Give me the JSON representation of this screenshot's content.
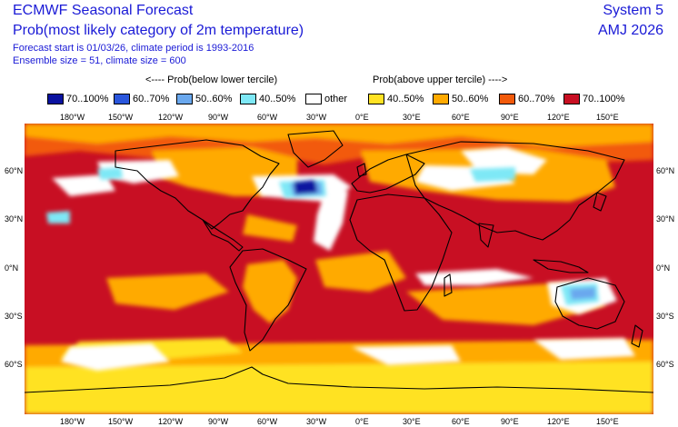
{
  "header": {
    "title": "ECMWF Seasonal Forecast",
    "subtitle": "Prob(most likely category of 2m temperature)",
    "forecast_line": "Forecast start is 01/03/26, climate period is 1993-2016",
    "ensemble_line": "Ensemble size = 51, climate size = 600",
    "system": "System 5",
    "period": "AMJ 2026"
  },
  "legend": {
    "below_label": "<---- Prob(below lower tercile)",
    "above_label": "Prob(above upper tercile) ---->",
    "items": [
      {
        "label": "70..100%",
        "color": "#0a12a0"
      },
      {
        "label": "60..70%",
        "color": "#2a56dc"
      },
      {
        "label": "50..60%",
        "color": "#6aa8ee"
      },
      {
        "label": "40..50%",
        "color": "#7ee8f6"
      },
      {
        "label": "other",
        "color": "#ffffff"
      },
      {
        "label": "40..50%",
        "color": "#ffe224"
      },
      {
        "label": "50..60%",
        "color": "#ffaa00"
      },
      {
        "label": "60..70%",
        "color": "#f25a0a"
      },
      {
        "label": "70..100%",
        "color": "#c80f23"
      }
    ]
  },
  "axes": {
    "lon_labels": [
      "180°W",
      "150°W",
      "120°W",
      "90°W",
      "60°W",
      "30°W",
      "0°E",
      "30°E",
      "60°E",
      "90°E",
      "120°E",
      "150°E"
    ],
    "lat_labels": [
      "60°N",
      "30°N",
      "0°N",
      "30°S",
      "60°S"
    ]
  },
  "map": {
    "ocean_fill": "#c80f23",
    "coast_color": "#000000"
  }
}
